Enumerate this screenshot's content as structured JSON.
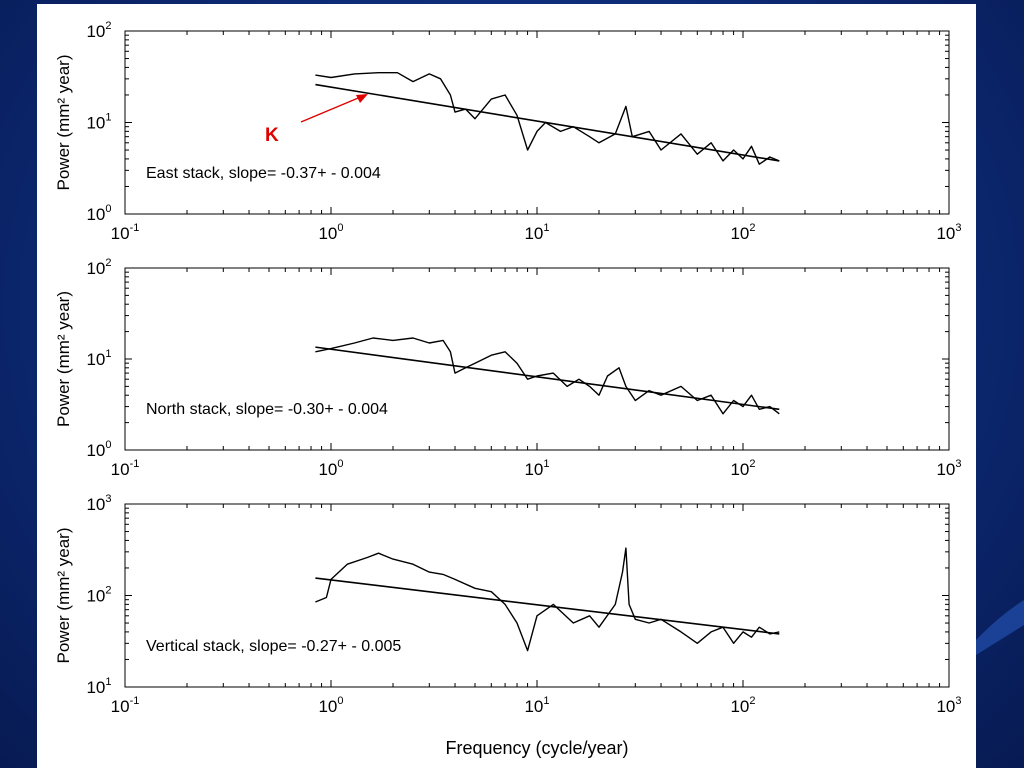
{
  "chart_data": [
    {
      "type": "line",
      "xscale": "log",
      "yscale": "log",
      "xlim": [
        0.1,
        1000
      ],
      "ylim": [
        1,
        100
      ],
      "ylabel": "Power (mm² year)",
      "xlabel": "",
      "x_ticks": [
        {
          "base": "10",
          "exp": "-1"
        },
        {
          "base": "10",
          "exp": "0"
        },
        {
          "base": "10",
          "exp": "1"
        },
        {
          "base": "10",
          "exp": "2"
        },
        {
          "base": "10",
          "exp": "3"
        }
      ],
      "y_ticks": [
        {
          "base": "10",
          "exp": "0"
        },
        {
          "base": "10",
          "exp": "1"
        },
        {
          "base": "10",
          "exp": "2"
        }
      ],
      "annotation": "East stack, slope= -0.37+ - 0.004",
      "marker_label": "K",
      "fit_line": {
        "x": [
          0.84,
          150
        ],
        "y": [
          26,
          3.8
        ]
      },
      "series": [
        {
          "values": [
            [
              0.84,
              33
            ],
            [
              1.0,
              31
            ],
            [
              1.3,
              34
            ],
            [
              1.7,
              35
            ],
            [
              2.1,
              35
            ],
            [
              2.5,
              28
            ],
            [
              3.0,
              34
            ],
            [
              3.4,
              30
            ],
            [
              3.8,
              20
            ],
            [
              4.0,
              13
            ],
            [
              4.5,
              14
            ],
            [
              5.0,
              11
            ],
            [
              6.0,
              18
            ],
            [
              7.0,
              20
            ],
            [
              8.0,
              12
            ],
            [
              9.0,
              5.0
            ],
            [
              10,
              8.0
            ],
            [
              11,
              10
            ],
            [
              13,
              8.0
            ],
            [
              15,
              9.0
            ],
            [
              18,
              7.0
            ],
            [
              20,
              6.0
            ],
            [
              24,
              7.5
            ],
            [
              27,
              15
            ],
            [
              29,
              7.0
            ],
            [
              35,
              8.0
            ],
            [
              40,
              5.0
            ],
            [
              50,
              7.5
            ],
            [
              60,
              4.5
            ],
            [
              70,
              6.0
            ],
            [
              80,
              3.8
            ],
            [
              90,
              5.0
            ],
            [
              100,
              4.0
            ],
            [
              110,
              5.5
            ],
            [
              120,
              3.5
            ],
            [
              135,
              4.2
            ],
            [
              150,
              3.8
            ]
          ]
        }
      ]
    },
    {
      "type": "line",
      "xscale": "log",
      "yscale": "log",
      "xlim": [
        0.1,
        1000
      ],
      "ylim": [
        1,
        100
      ],
      "ylabel": "Power (mm² year)",
      "xlabel": "",
      "x_ticks": [
        {
          "base": "10",
          "exp": "-1"
        },
        {
          "base": "10",
          "exp": "0"
        },
        {
          "base": "10",
          "exp": "1"
        },
        {
          "base": "10",
          "exp": "2"
        },
        {
          "base": "10",
          "exp": "3"
        }
      ],
      "y_ticks": [
        {
          "base": "10",
          "exp": "0"
        },
        {
          "base": "10",
          "exp": "1"
        },
        {
          "base": "10",
          "exp": "2"
        }
      ],
      "annotation": "North stack, slope= -0.30+ - 0.004",
      "fit_line": {
        "x": [
          0.84,
          150
        ],
        "y": [
          13.5,
          2.8
        ]
      },
      "series": [
        {
          "values": [
            [
              0.84,
              12
            ],
            [
              1.0,
              13
            ],
            [
              1.3,
              15
            ],
            [
              1.6,
              17
            ],
            [
              2.0,
              16
            ],
            [
              2.5,
              17
            ],
            [
              3.0,
              15
            ],
            [
              3.5,
              16
            ],
            [
              3.8,
              12
            ],
            [
              4.0,
              7.0
            ],
            [
              4.5,
              8.0
            ],
            [
              5.0,
              9.0
            ],
            [
              6.0,
              11
            ],
            [
              7.0,
              12
            ],
            [
              8.0,
              9.0
            ],
            [
              9.0,
              6.0
            ],
            [
              10,
              6.5
            ],
            [
              12,
              7.0
            ],
            [
              14,
              5.0
            ],
            [
              16,
              6.0
            ],
            [
              18,
              5.0
            ],
            [
              20,
              4.0
            ],
            [
              22,
              6.5
            ],
            [
              25,
              8.0
            ],
            [
              27,
              5.0
            ],
            [
              30,
              3.5
            ],
            [
              35,
              4.5
            ],
            [
              40,
              4.0
            ],
            [
              50,
              5.0
            ],
            [
              60,
              3.5
            ],
            [
              70,
              4.0
            ],
            [
              80,
              2.5
            ],
            [
              90,
              3.5
            ],
            [
              100,
              3.0
            ],
            [
              110,
              4.0
            ],
            [
              120,
              2.8
            ],
            [
              135,
              3.0
            ],
            [
              150,
              2.5
            ]
          ]
        }
      ]
    },
    {
      "type": "line",
      "xscale": "log",
      "yscale": "log",
      "xlim": [
        0.1,
        1000
      ],
      "ylim": [
        10,
        1000
      ],
      "ylabel": "Power (mm² year)",
      "xlabel": "Frequency (cycle/year)",
      "x_ticks": [
        {
          "base": "10",
          "exp": "-1"
        },
        {
          "base": "10",
          "exp": "0"
        },
        {
          "base": "10",
          "exp": "1"
        },
        {
          "base": "10",
          "exp": "2"
        },
        {
          "base": "10",
          "exp": "3"
        }
      ],
      "y_ticks": [
        {
          "base": "10",
          "exp": "1"
        },
        {
          "base": "10",
          "exp": "2"
        },
        {
          "base": "10",
          "exp": "3"
        }
      ],
      "annotation": "Vertical stack, slope= -0.27+ - 0.005",
      "fit_line": {
        "x": [
          0.84,
          150
        ],
        "y": [
          155,
          38
        ]
      },
      "series": [
        {
          "values": [
            [
              0.84,
              85
            ],
            [
              0.95,
              95
            ],
            [
              1.0,
              150
            ],
            [
              1.2,
              220
            ],
            [
              1.5,
              260
            ],
            [
              1.7,
              290
            ],
            [
              2.0,
              250
            ],
            [
              2.5,
              220
            ],
            [
              3.0,
              180
            ],
            [
              3.5,
              170
            ],
            [
              4.0,
              150
            ],
            [
              5.0,
              120
            ],
            [
              6.0,
              110
            ],
            [
              7.0,
              80
            ],
            [
              8.0,
              50
            ],
            [
              9.0,
              25
            ],
            [
              10,
              60
            ],
            [
              12,
              80
            ],
            [
              15,
              50
            ],
            [
              18,
              60
            ],
            [
              20,
              45
            ],
            [
              24,
              80
            ],
            [
              26,
              180
            ],
            [
              27,
              330
            ],
            [
              28,
              80
            ],
            [
              30,
              55
            ],
            [
              35,
              50
            ],
            [
              40,
              55
            ],
            [
              50,
              40
            ],
            [
              60,
              30
            ],
            [
              70,
              40
            ],
            [
              80,
              45
            ],
            [
              90,
              30
            ],
            [
              100,
              40
            ],
            [
              110,
              35
            ],
            [
              120,
              45
            ],
            [
              135,
              38
            ],
            [
              150,
              40
            ]
          ]
        }
      ]
    }
  ]
}
